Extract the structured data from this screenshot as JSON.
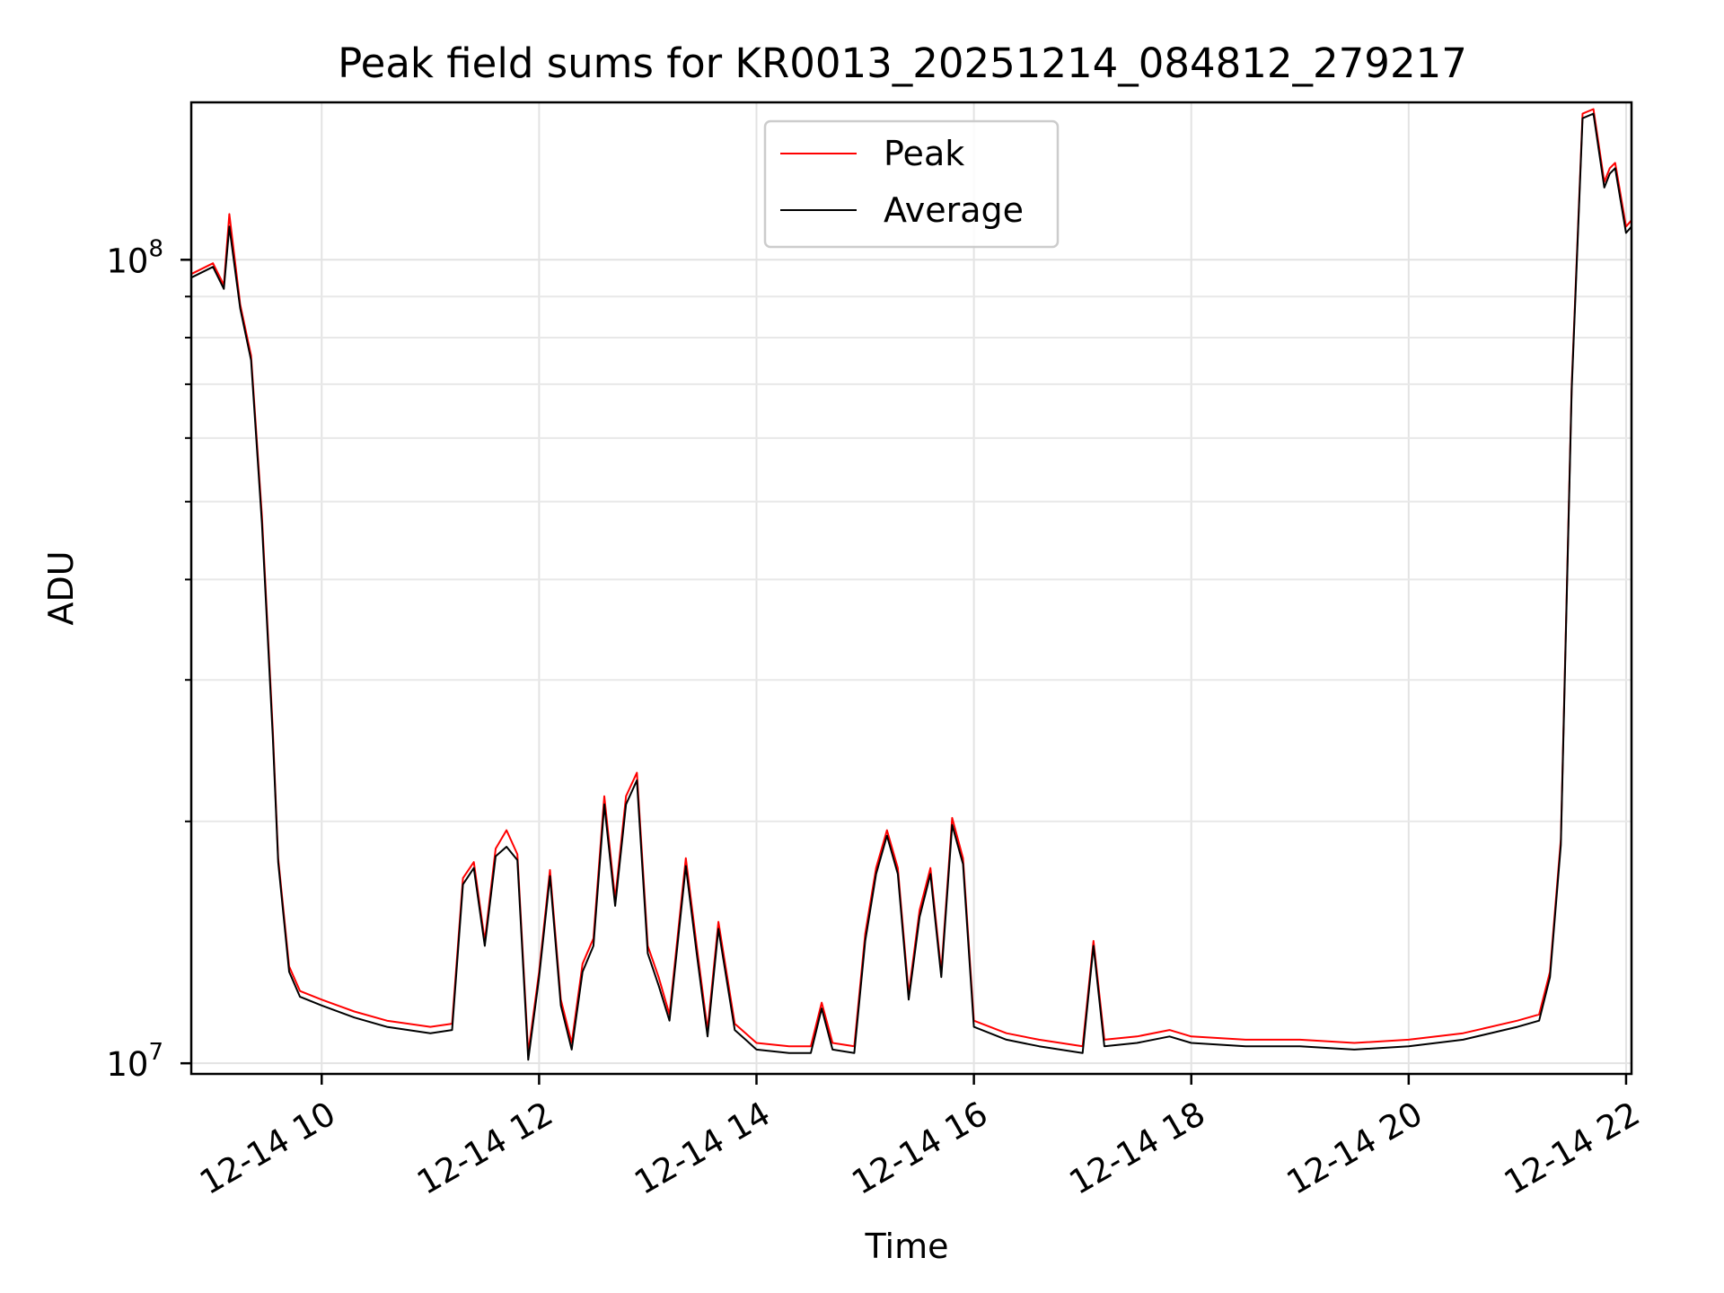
{
  "chart_data": {
    "type": "line",
    "title": "Peak field sums for KR0013_20251214_084812_279217",
    "xlabel": "Time",
    "ylabel": "ADU",
    "yscale": "log",
    "xlim_hours": [
      8.8,
      22.05
    ],
    "ylim": [
      9700000,
      157000000
    ],
    "x_tick_hours": [
      10,
      12,
      14,
      16,
      18,
      20,
      22
    ],
    "x_tick_labels": [
      "12-14 10",
      "12-14 12",
      "12-14 14",
      "12-14 16",
      "12-14 18",
      "12-14 20",
      "12-14 22"
    ],
    "y_ticks": [
      10000000,
      100000000
    ],
    "y_tick_labels": [
      {
        "base": "10",
        "exp": "7"
      },
      {
        "base": "10",
        "exp": "8"
      }
    ],
    "y_minor_ticks": [
      20000000,
      30000000,
      40000000,
      50000000,
      60000000,
      70000000,
      80000000,
      90000000
    ],
    "grid": true,
    "legend": {
      "location": "top-center"
    },
    "series": [
      {
        "name": "Peak",
        "color": "#ff0000",
        "x": [
          8.8,
          9.0,
          9.1,
          9.15,
          9.25,
          9.35,
          9.45,
          9.55,
          9.6,
          9.7,
          9.8,
          10.0,
          10.3,
          10.6,
          11.0,
          11.2,
          11.3,
          11.4,
          11.5,
          11.6,
          11.7,
          11.8,
          11.9,
          12.0,
          12.1,
          12.2,
          12.3,
          12.4,
          12.5,
          12.6,
          12.7,
          12.8,
          12.9,
          13.0,
          13.1,
          13.2,
          13.35,
          13.45,
          13.55,
          13.65,
          13.8,
          13.9,
          14.0,
          14.3,
          14.5,
          14.6,
          14.7,
          14.9,
          15.0,
          15.1,
          15.2,
          15.3,
          15.4,
          15.5,
          15.6,
          15.7,
          15.8,
          15.9,
          16.0,
          16.3,
          16.6,
          17.0,
          17.1,
          17.2,
          17.5,
          17.8,
          18.0,
          18.5,
          19.0,
          19.5,
          20.0,
          20.5,
          21.0,
          21.2,
          21.3,
          21.4,
          21.5,
          21.6,
          21.7,
          21.8,
          21.85,
          21.9,
          22.0,
          22.05
        ],
        "y": [
          96000000,
          99000000,
          93000000,
          114000000,
          88000000,
          76000000,
          48000000,
          26000000,
          18000000,
          13200000,
          12300000,
          12000000,
          11600000,
          11300000,
          11100000,
          11200000,
          17000000,
          17800000,
          14200000,
          18500000,
          19500000,
          18200000,
          10300000,
          13000000,
          17400000,
          12000000,
          10600000,
          13300000,
          14300000,
          21500000,
          16000000,
          21500000,
          23000000,
          14000000,
          12800000,
          11500000,
          18000000,
          14000000,
          11000000,
          15000000,
          11200000,
          10900000,
          10600000,
          10500000,
          10500000,
          11900000,
          10600000,
          10500000,
          14500000,
          17500000,
          19500000,
          17500000,
          12200000,
          15500000,
          17500000,
          13000000,
          20200000,
          18000000,
          11300000,
          10900000,
          10700000,
          10500000,
          14200000,
          10700000,
          10800000,
          11000000,
          10800000,
          10700000,
          10700000,
          10600000,
          10700000,
          10900000,
          11300000,
          11500000,
          13000000,
          19000000,
          70000000,
          152000000,
          154000000,
          125000000,
          130000000,
          132000000,
          110000000,
          112000000
        ]
      },
      {
        "name": "Average",
        "color": "#000000",
        "x": [
          8.8,
          9.0,
          9.1,
          9.15,
          9.25,
          9.35,
          9.45,
          9.55,
          9.6,
          9.7,
          9.8,
          10.0,
          10.3,
          10.6,
          11.0,
          11.2,
          11.3,
          11.4,
          11.5,
          11.6,
          11.7,
          11.8,
          11.9,
          12.0,
          12.1,
          12.2,
          12.3,
          12.4,
          12.5,
          12.6,
          12.7,
          12.8,
          12.9,
          13.0,
          13.1,
          13.2,
          13.35,
          13.45,
          13.55,
          13.65,
          13.8,
          13.9,
          14.0,
          14.3,
          14.5,
          14.6,
          14.7,
          14.9,
          15.0,
          15.1,
          15.2,
          15.3,
          15.4,
          15.5,
          15.6,
          15.7,
          15.8,
          15.9,
          16.0,
          16.3,
          16.6,
          17.0,
          17.1,
          17.2,
          17.5,
          17.8,
          18.0,
          18.5,
          19.0,
          19.5,
          20.0,
          20.5,
          21.0,
          21.2,
          21.3,
          21.4,
          21.5,
          21.6,
          21.7,
          21.8,
          21.85,
          21.9,
          22.0,
          22.05
        ],
        "y": [
          95000000,
          98000000,
          92000000,
          110000000,
          87000000,
          75000000,
          47000000,
          25500000,
          17800000,
          13000000,
          12100000,
          11800000,
          11400000,
          11100000,
          10900000,
          11000000,
          16700000,
          17500000,
          14000000,
          18100000,
          18600000,
          17900000,
          10100000,
          12800000,
          17100000,
          11800000,
          10400000,
          13000000,
          14000000,
          21000000,
          15700000,
          21000000,
          22500000,
          13700000,
          12500000,
          11300000,
          17600000,
          13700000,
          10800000,
          14700000,
          11000000,
          10700000,
          10400000,
          10300000,
          10300000,
          11700000,
          10400000,
          10300000,
          14200000,
          17200000,
          19200000,
          17200000,
          12000000,
          15200000,
          17200000,
          12800000,
          19800000,
          17700000,
          11100000,
          10700000,
          10500000,
          10300000,
          14000000,
          10500000,
          10600000,
          10800000,
          10600000,
          10500000,
          10500000,
          10400000,
          10500000,
          10700000,
          11100000,
          11300000,
          12800000,
          18700000,
          69000000,
          150000000,
          152000000,
          123000000,
          128000000,
          130000000,
          108000000,
          110000000
        ]
      }
    ]
  }
}
